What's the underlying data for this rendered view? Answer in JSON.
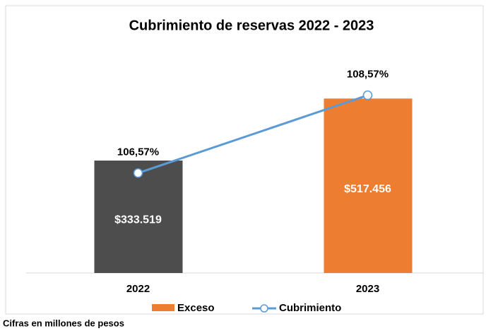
{
  "chart_data": {
    "type": "bar_line",
    "title": "Cubrimiento de reservas 2022 - 2023",
    "categories": [
      "2022",
      "2023"
    ],
    "series": [
      {
        "name": "Exceso",
        "type": "bar",
        "color": "#ed7d31",
        "point_colors": [
          "#4d4d4d",
          "#ed7d31"
        ],
        "values": [
          333519,
          517456
        ],
        "value_labels": [
          "$333.519",
          "$517.456"
        ]
      },
      {
        "name": "Cubrimiento",
        "type": "line",
        "axis": "y2",
        "color": "#5b9bd5",
        "values": [
          106.57,
          108.57
        ],
        "value_labels": [
          "106,57%",
          "108,57%"
        ]
      }
    ],
    "ylim": [
      0,
      600000
    ],
    "y2lim": [
      104,
      109.2
    ],
    "legend": "bottom",
    "grid": false,
    "note": "Cifras en millones de pesos"
  }
}
